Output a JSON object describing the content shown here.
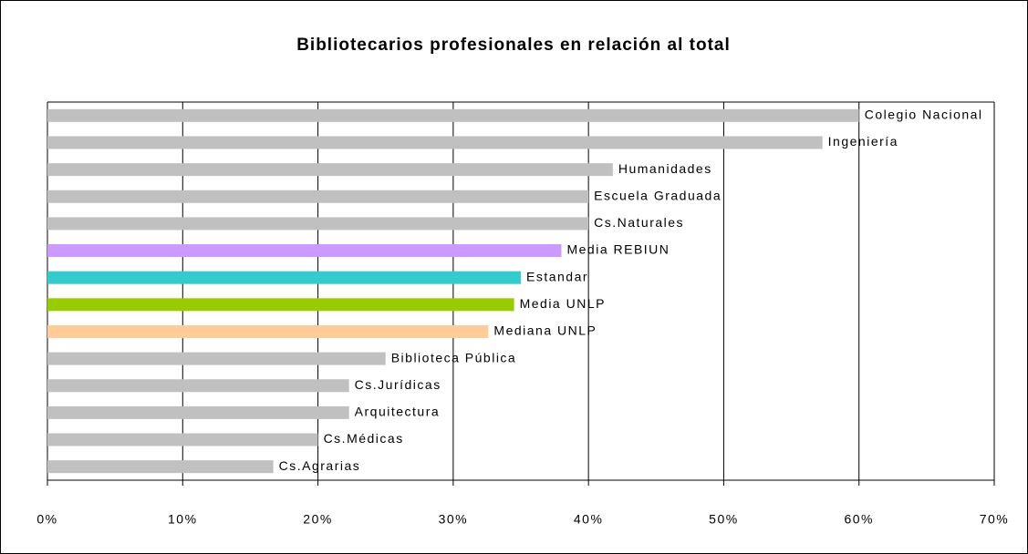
{
  "chart_data": {
    "type": "barh",
    "title": "Bibliotecarios profesionales en relación al total",
    "categories": [
      "Colegio Nacional",
      "Ingeniería",
      "Humanidades",
      "Escuela Graduada",
      "Cs.Naturales",
      "Media REBIUN",
      "Estandar",
      "Media UNLP",
      "Mediana UNLP",
      "Biblioteca Pública",
      "Cs.Jurídicas",
      "Arquitectura",
      "Cs.Médicas",
      "Cs.Agrarias"
    ],
    "values": [
      60,
      57.3,
      41.8,
      40,
      40,
      38,
      35,
      34.5,
      32.6,
      25,
      22.3,
      22.3,
      20,
      16.7
    ],
    "colors": [
      "#c0c0c0",
      "#c0c0c0",
      "#c0c0c0",
      "#c0c0c0",
      "#c0c0c0",
      "#cc99ff",
      "#33cccc",
      "#99cc00",
      "#ffcc99",
      "#c0c0c0",
      "#c0c0c0",
      "#c0c0c0",
      "#c0c0c0",
      "#c0c0c0"
    ],
    "xlim": [
      0,
      70
    ],
    "xticks": [
      {
        "value": 0,
        "label": "0%"
      },
      {
        "value": 10,
        "label": "10%"
      },
      {
        "value": 20,
        "label": "20%"
      },
      {
        "value": 30,
        "label": "30%"
      },
      {
        "value": 40,
        "label": "40%"
      },
      {
        "value": 50,
        "label": "50%"
      },
      {
        "value": 60,
        "label": "60%"
      },
      {
        "value": 70,
        "label": "70%"
      }
    ],
    "grid": true
  }
}
